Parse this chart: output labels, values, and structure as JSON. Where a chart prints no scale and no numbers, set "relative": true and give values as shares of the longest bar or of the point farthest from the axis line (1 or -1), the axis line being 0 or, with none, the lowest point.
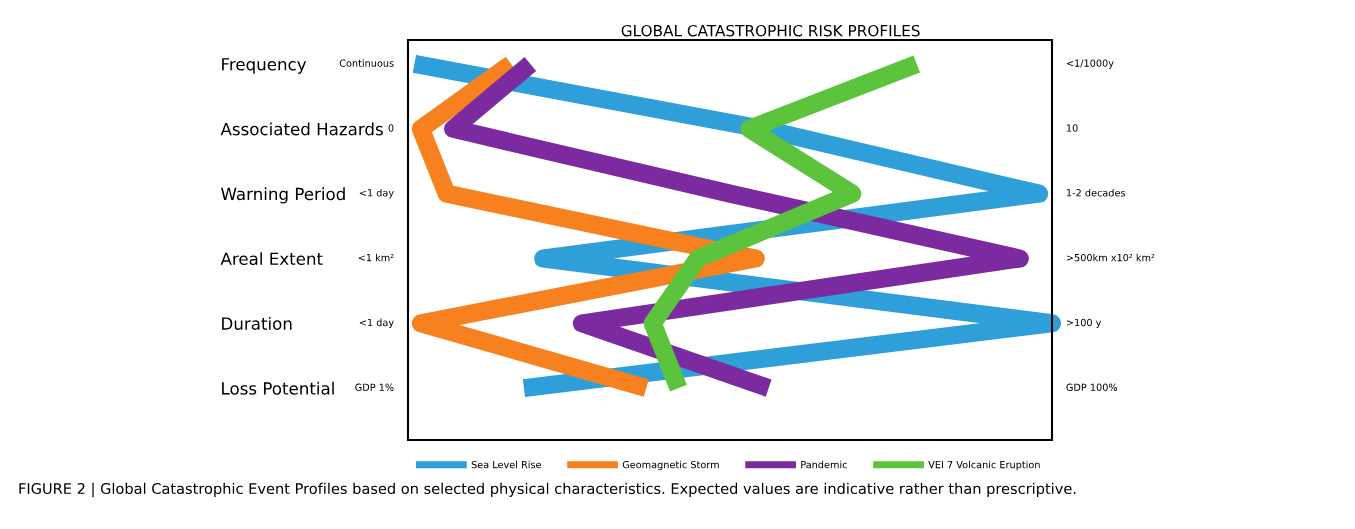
{
  "chart_data": {
    "type": "line",
    "title": "GLOBAL CATASTROPHIC RISK PROFILES",
    "orientation": "horizontal",
    "relative": true,
    "categories": [
      "Frequency",
      "Associated Hazards",
      "Warning Period",
      "Areal Extent",
      "Duration",
      "Loss Potential"
    ],
    "series": [
      {
        "name": "Sea Level Rise",
        "color": "#2e9fd8",
        "values": [
          0.01,
          0.55,
          0.98,
          0.21,
          1,
          0.18
        ]
      },
      {
        "name": "Geomagnetic Storm",
        "color": "#f7801f",
        "values": [
          0.16,
          0.02,
          0.06,
          0.54,
          0.02,
          0.37
        ]
      },
      {
        "name": "Pandemic",
        "color": "#7b2aa0",
        "values": [
          0.19,
          0.07,
          0.5,
          0.95,
          0.27,
          0.56
        ]
      },
      {
        "name": "VEI 7 Volcanic Eruption",
        "color": "#5cc43c",
        "values": [
          0.79,
          0.53,
          0.69,
          0.45,
          0.38,
          0.42
        ]
      }
    ],
    "legend": "bottom",
    "grid": false,
    "annotations": [
      "Continuous",
      "0",
      "<1 day",
      "<1 km²",
      "<1 day",
      "GDP 1%",
      "<1/1000y",
      "10",
      "1-2 decades",
      ">500km x10² km²",
      ">100 y",
      "GDP 100%",
      "FIGURE 2 | Global Catastrophic Event Profiles based on selected physical characteristics. Expected values are indicative rather than prescriptive."
    ]
  }
}
